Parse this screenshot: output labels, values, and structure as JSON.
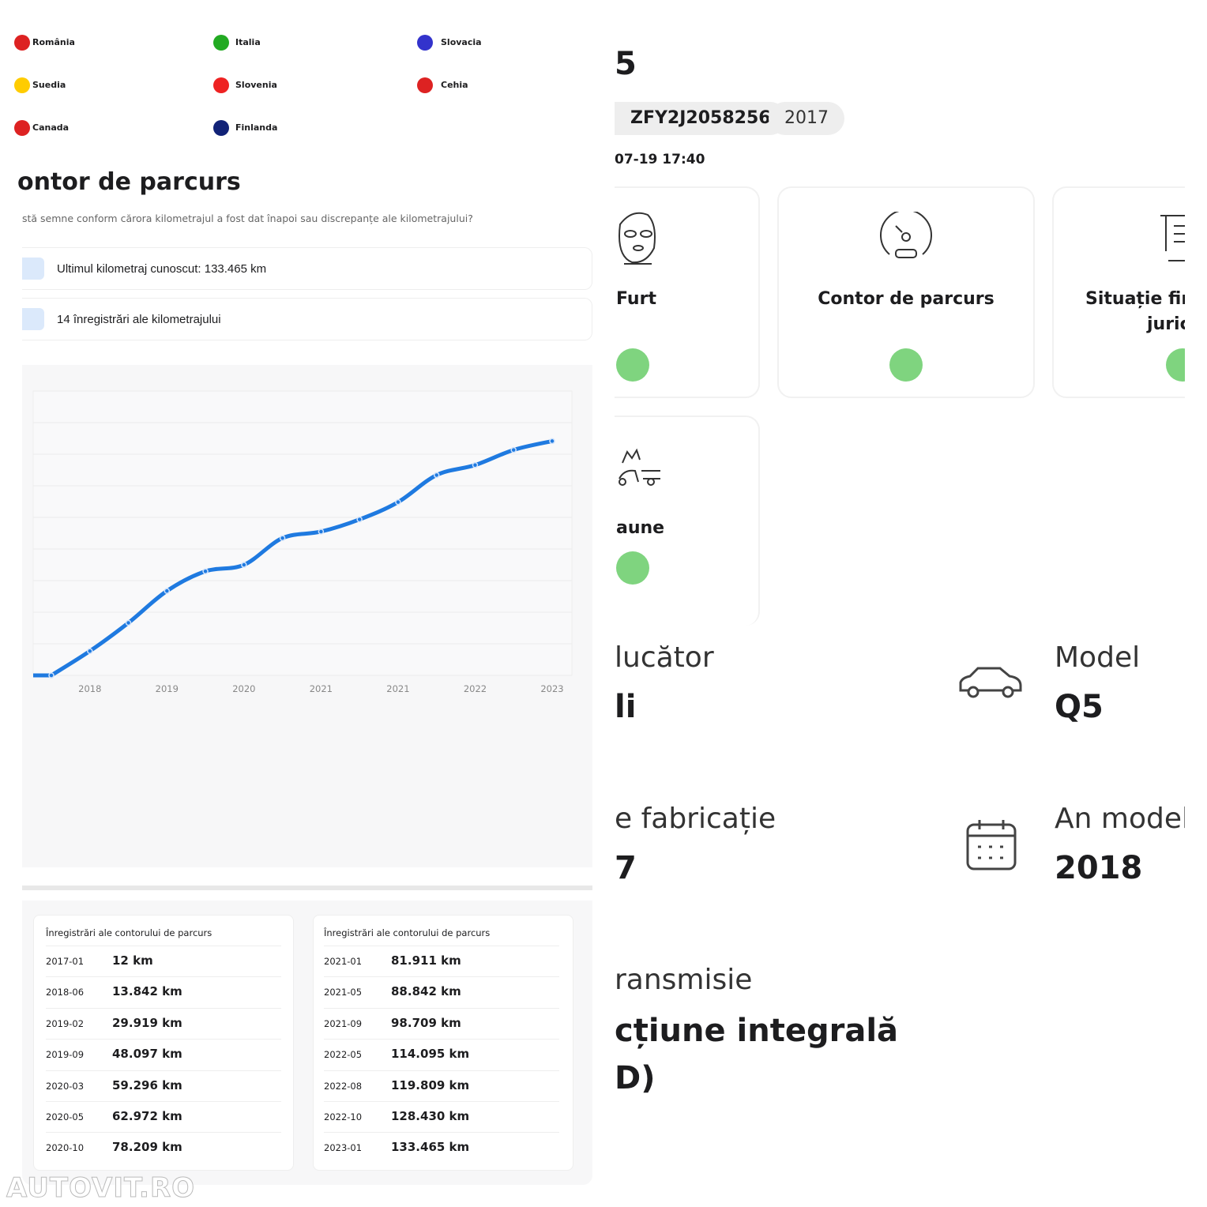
{
  "countries": [
    "România",
    "Italia",
    "Slovacia",
    "Suedia",
    "Slovenia",
    "Cehia",
    "Canada",
    "Finlanda"
  ],
  "odometer": {
    "heading": "ontor de parcurs",
    "question": "stă semne conform cărora kilometrajul a fost dat înapoi sau discrepanțe ale kilometrajului?",
    "info": [
      "Ultimul kilometraj cunoscut: 133.465 km",
      "14 înregistrări ale kilometrajului"
    ],
    "tables": [
      {
        "header": "Înregistrări ale contorului de parcurs",
        "rows": [
          [
            "2017-01",
            "12 km"
          ],
          [
            "2018-06",
            "13.842 km"
          ],
          [
            "2019-02",
            "29.919 km"
          ],
          [
            "2019-09",
            "48.097 km"
          ],
          [
            "2020-03",
            "59.296 km"
          ],
          [
            "2020-05",
            "62.972 km"
          ],
          [
            "2020-10",
            "78.209 km"
          ]
        ]
      },
      {
        "header": "Înregistrări ale contorului de parcurs",
        "rows": [
          [
            "2021-01",
            "81.911 km"
          ],
          [
            "2021-05",
            "88.842 km"
          ],
          [
            "2021-09",
            "98.709 km"
          ],
          [
            "2022-05",
            "114.095 km"
          ],
          [
            "2022-08",
            "119.809 km"
          ],
          [
            "2022-10",
            "128.430 km"
          ],
          [
            "2023-01",
            "133.465 km"
          ]
        ]
      }
    ]
  },
  "chart_data": {
    "type": "line",
    "categories": [
      null,
      "2018",
      null,
      "2019",
      null,
      "2020",
      null,
      "2021",
      null,
      "2021",
      null,
      "2022",
      null,
      "2023"
    ],
    "values": [
      12,
      13842,
      29919,
      48097,
      59296,
      62972,
      78209,
      81911,
      88842,
      98709,
      114095,
      119809,
      128430,
      133465
    ],
    "color": "#1f7ae0",
    "ylim": [
      0,
      162000
    ],
    "yticks": [
      0,
      18000,
      36000,
      54000,
      72000,
      90000,
      108000,
      126000,
      144000,
      162000
    ],
    "grid": true
  },
  "report": {
    "title": "5",
    "chips": [
      "ZFY2J2058256",
      "2017"
    ],
    "date": "07-19 17:40",
    "cards": [
      "Furt",
      "Contor de parcurs",
      [
        "Situație fir",
        "juric"
      ],
      "aune"
    ],
    "specs": [
      {
        "label": "lucător",
        "value": "li"
      },
      {
        "label": "Model",
        "value": "Q5"
      },
      {
        "label": "e fabricație",
        "value": "7"
      },
      {
        "label": "An model",
        "value": "2018"
      },
      {
        "label": "ransmisie",
        "value": [
          "cțiune integrală",
          "D)"
        ]
      }
    ]
  },
  "watermark": "AUTOVIT.RO"
}
